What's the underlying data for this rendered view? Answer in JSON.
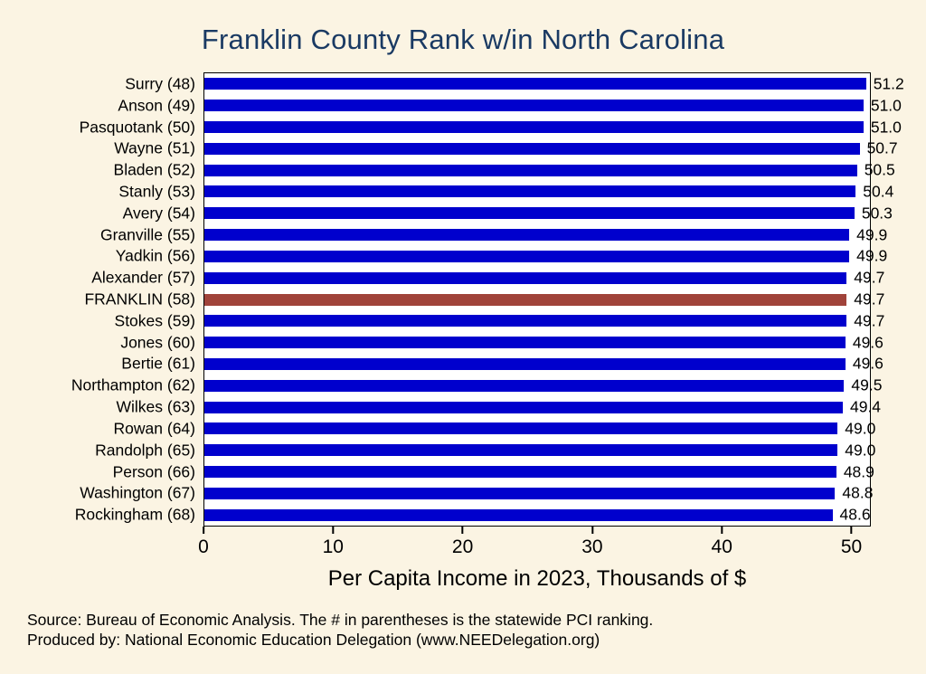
{
  "title": "Franklin County Rank w/in North Carolina",
  "chart_data": {
    "type": "bar",
    "orientation": "horizontal",
    "title": "Franklin County Rank w/in North Carolina",
    "categories": [
      "Surry (48)",
      "Anson (49)",
      "Pasquotank (50)",
      "Wayne (51)",
      "Bladen (52)",
      "Stanly (53)",
      "Avery (54)",
      "Granville (55)",
      "Yadkin (56)",
      "Alexander (57)",
      "FRANKLIN (58)",
      "Stokes (59)",
      "Jones (60)",
      "Bertie (61)",
      "Northampton (62)",
      "Wilkes (63)",
      "Rowan (64)",
      "Randolph (65)",
      "Person (66)",
      "Washington (67)",
      "Rockingham (68)"
    ],
    "values": [
      51.2,
      51.0,
      51.0,
      50.7,
      50.5,
      50.4,
      50.3,
      49.9,
      49.9,
      49.7,
      49.7,
      49.7,
      49.6,
      49.6,
      49.5,
      49.4,
      49.0,
      49.0,
      48.9,
      48.8,
      48.6
    ],
    "value_labels": [
      "51.2",
      "51.0",
      "51.0",
      "50.7",
      "50.5",
      "50.4",
      "50.3",
      "49.9",
      "49.9",
      "49.7",
      "49.7",
      "49.7",
      "49.6",
      "49.6",
      "49.5",
      "49.4",
      "49.0",
      "49.0",
      "48.9",
      "48.8",
      "48.6"
    ],
    "highlight_index": 10,
    "bar_color": "#0000CD",
    "highlight_color": "#A0433A",
    "xlabel": "Per Capita Income in 2023, Thousands of $",
    "ylabel": "",
    "x_ticks": [
      0,
      10,
      20,
      30,
      40,
      50
    ],
    "xlim": [
      0,
      51.5
    ],
    "grid": false,
    "legend": false
  },
  "footer": {
    "line1": "Source: Bureau of Economic Analysis. The # in parentheses is the statewide PCI ranking.",
    "line2": "Produced by: National Economic Education Delegation (www.NEEDelegation.org)"
  },
  "colors": {
    "background": "#FBF4E3",
    "title": "#1A3A63",
    "plot_background": "#FFFFFF",
    "bar": "#0000CD",
    "highlight": "#A0433A"
  }
}
